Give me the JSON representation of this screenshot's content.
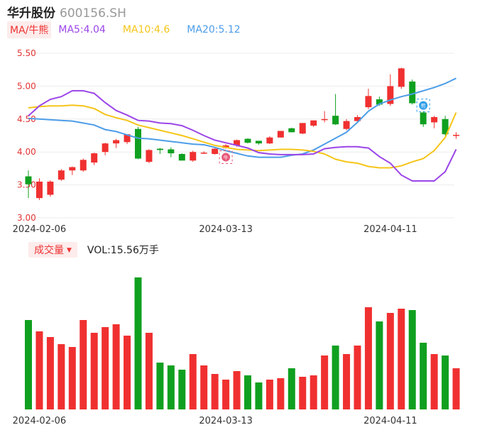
{
  "header": {
    "name": "华升股份",
    "code": "600156.SH"
  },
  "legend": {
    "tag": "MA/牛熊",
    "ma5": "MA5:4.04",
    "ma10": "MA10:4.6",
    "ma20": "MA20:5.12"
  },
  "volume_legend": {
    "tag": "成交量",
    "arrow": "▼",
    "value": "VOL:15.56万手"
  },
  "colors": {
    "up": "#f03030",
    "down": "#10a020",
    "ma5": "#9b45e8",
    "ma10": "#f5c518",
    "ma20": "#4d9de8",
    "axis_label": "#e33333"
  },
  "markers": [
    {
      "index": 18,
      "label": "牛",
      "color": "#e8587a"
    },
    {
      "index": 36,
      "label": "熊",
      "color": "#2a9ce8"
    }
  ],
  "chart_data": [
    {
      "type": "candlestick",
      "ylim": [
        3.0,
        5.5
      ],
      "y_ticks": [
        "3.00",
        "3.50",
        "4.00",
        "4.50",
        "5.00",
        "5.50"
      ],
      "x_ticks": [
        {
          "index": 1,
          "label": "2024-02-06"
        },
        {
          "index": 18,
          "label": "2024-03-13"
        },
        {
          "index": 33,
          "label": "2024-04-11"
        }
      ],
      "candles": [
        [
          3.63,
          3.51,
          3.72,
          3.3
        ],
        [
          3.3,
          3.55,
          3.6,
          3.27
        ],
        [
          3.35,
          3.55,
          3.57,
          3.32
        ],
        [
          3.58,
          3.72,
          3.74,
          3.56
        ],
        [
          3.72,
          3.77,
          3.78,
          3.65
        ],
        [
          3.72,
          3.88,
          3.9,
          3.7
        ],
        [
          3.84,
          3.98,
          3.99,
          3.8
        ],
        [
          4.0,
          4.13,
          4.14,
          3.95
        ],
        [
          4.13,
          4.18,
          4.2,
          4.06
        ],
        [
          4.15,
          4.27,
          4.27,
          4.12
        ],
        [
          4.35,
          3.9,
          4.38,
          3.89
        ],
        [
          3.85,
          4.03,
          4.04,
          3.83
        ],
        [
          4.05,
          4.03,
          4.06,
          3.97
        ],
        [
          4.04,
          3.98,
          4.07,
          3.92
        ],
        [
          3.97,
          3.87,
          3.98,
          3.87
        ],
        [
          3.87,
          4.0,
          4.02,
          3.85
        ],
        [
          3.98,
          3.99,
          4.01,
          3.97
        ],
        [
          3.97,
          4.05,
          4.06,
          3.96
        ],
        [
          4.06,
          4.1,
          4.12,
          4.05
        ],
        [
          4.1,
          4.18,
          4.19,
          4.08
        ],
        [
          4.2,
          4.14,
          4.21,
          4.13
        ],
        [
          4.17,
          4.13,
          4.17,
          4.11
        ],
        [
          4.13,
          4.22,
          4.24,
          4.12
        ],
        [
          4.22,
          4.32,
          4.32,
          4.22
        ],
        [
          4.36,
          4.3,
          4.37,
          4.3
        ],
        [
          4.28,
          4.44,
          4.44,
          4.27
        ],
        [
          4.4,
          4.48,
          4.48,
          4.38
        ],
        [
          4.5,
          4.5,
          4.62,
          4.45
        ],
        [
          4.55,
          4.42,
          4.88,
          4.41
        ],
        [
          4.35,
          4.47,
          4.5,
          4.33
        ],
        [
          4.47,
          4.53,
          4.56,
          4.46
        ],
        [
          4.68,
          4.85,
          4.96,
          4.65
        ],
        [
          4.8,
          4.72,
          4.84,
          4.7
        ],
        [
          4.73,
          5.0,
          5.18,
          4.7
        ],
        [
          4.99,
          5.27,
          5.28,
          4.96
        ],
        [
          5.07,
          4.74,
          5.1,
          4.72
        ],
        [
          4.6,
          4.42,
          4.62,
          4.38
        ],
        [
          4.45,
          4.53,
          4.55,
          4.36
        ],
        [
          4.5,
          4.27,
          4.55,
          4.25
        ],
        [
          4.25,
          4.26,
          4.3,
          4.2
        ]
      ],
      "ma5": [
        4.55,
        4.7,
        4.8,
        4.84,
        4.93,
        4.93,
        4.89,
        4.75,
        4.63,
        4.56,
        4.48,
        4.47,
        4.44,
        4.43,
        4.4,
        4.33,
        4.25,
        4.18,
        4.14,
        4.1,
        4.06,
        3.99,
        3.97,
        3.96,
        3.96,
        3.96,
        3.97,
        4.05,
        4.07,
        4.08,
        4.08,
        4.06,
        3.93,
        3.83,
        3.65,
        3.56,
        3.56,
        3.56,
        3.7,
        4.04
      ],
      "ma10": [
        4.67,
        4.69,
        4.7,
        4.7,
        4.71,
        4.7,
        4.66,
        4.57,
        4.52,
        4.48,
        4.41,
        4.37,
        4.33,
        4.29,
        4.25,
        4.2,
        4.15,
        4.1,
        4.07,
        4.04,
        4.03,
        4.02,
        4.03,
        4.04,
        4.04,
        4.03,
        4.01,
        3.97,
        3.89,
        3.85,
        3.83,
        3.78,
        3.76,
        3.76,
        3.79,
        3.85,
        3.9,
        4.02,
        4.22,
        4.6
      ],
      "ma20": [
        4.51,
        4.5,
        4.49,
        4.48,
        4.47,
        4.44,
        4.41,
        4.34,
        4.31,
        4.26,
        4.21,
        4.2,
        4.18,
        4.16,
        4.14,
        4.12,
        4.11,
        4.07,
        4.02,
        3.98,
        3.94,
        3.92,
        3.92,
        3.92,
        3.95,
        3.97,
        4.03,
        4.12,
        4.21,
        4.3,
        4.45,
        4.62,
        4.73,
        4.79,
        4.84,
        4.88,
        4.93,
        4.98,
        5.04,
        5.12
      ]
    },
    {
      "type": "bar",
      "title": "成交量",
      "x_ticks": [
        {
          "index": 1,
          "label": "2024-02-06"
        },
        {
          "index": 18,
          "label": "2024-03-13"
        },
        {
          "index": 33,
          "label": "2024-04-11"
        }
      ],
      "values": [
        63,
        55,
        51,
        46,
        44,
        63,
        54,
        58,
        60,
        52,
        93,
        54,
        33,
        31,
        28,
        39,
        31,
        25,
        21,
        27,
        24,
        19,
        21,
        22,
        29,
        23,
        24,
        38,
        45,
        39,
        45,
        72,
        62,
        68,
        71,
        70,
        47,
        39,
        38,
        29
      ],
      "units": "relative (max 100)"
    }
  ]
}
